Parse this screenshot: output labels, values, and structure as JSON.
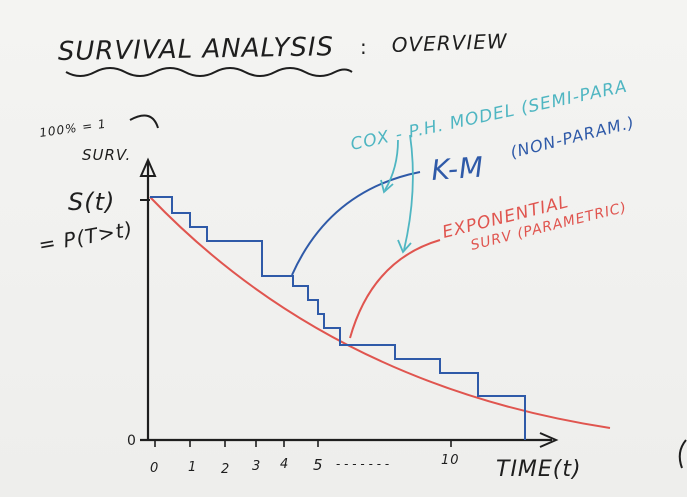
{
  "title": "SURVIVAL ANALYSIS",
  "title_sep": ":",
  "subtitle": "OVERVIEW",
  "y_top_label": "100% = 1",
  "y_top_label2": "SURV.",
  "s_label": "S(t)",
  "s_def": "= P(T>t)",
  "y_zero": "0",
  "x_label": "TIME(t)",
  "x_ticks": [
    "0",
    "1",
    "2",
    "3",
    "4",
    "5",
    "10"
  ],
  "x_ellipsis": "- - - - - - -",
  "models": {
    "cox": {
      "label": "COX - P.H. MODEL (SEMI-PARA",
      "color": "#4fb6c2"
    },
    "km": {
      "label": "K-M",
      "label2": "(NON-PARAM.)",
      "color": "#2f5aa8"
    },
    "exp": {
      "label": "EXPONENTIAL",
      "label2": "SURV (PARAMETRIC)",
      "color": "#e0554f"
    }
  },
  "ink": "#1e1e1e"
}
